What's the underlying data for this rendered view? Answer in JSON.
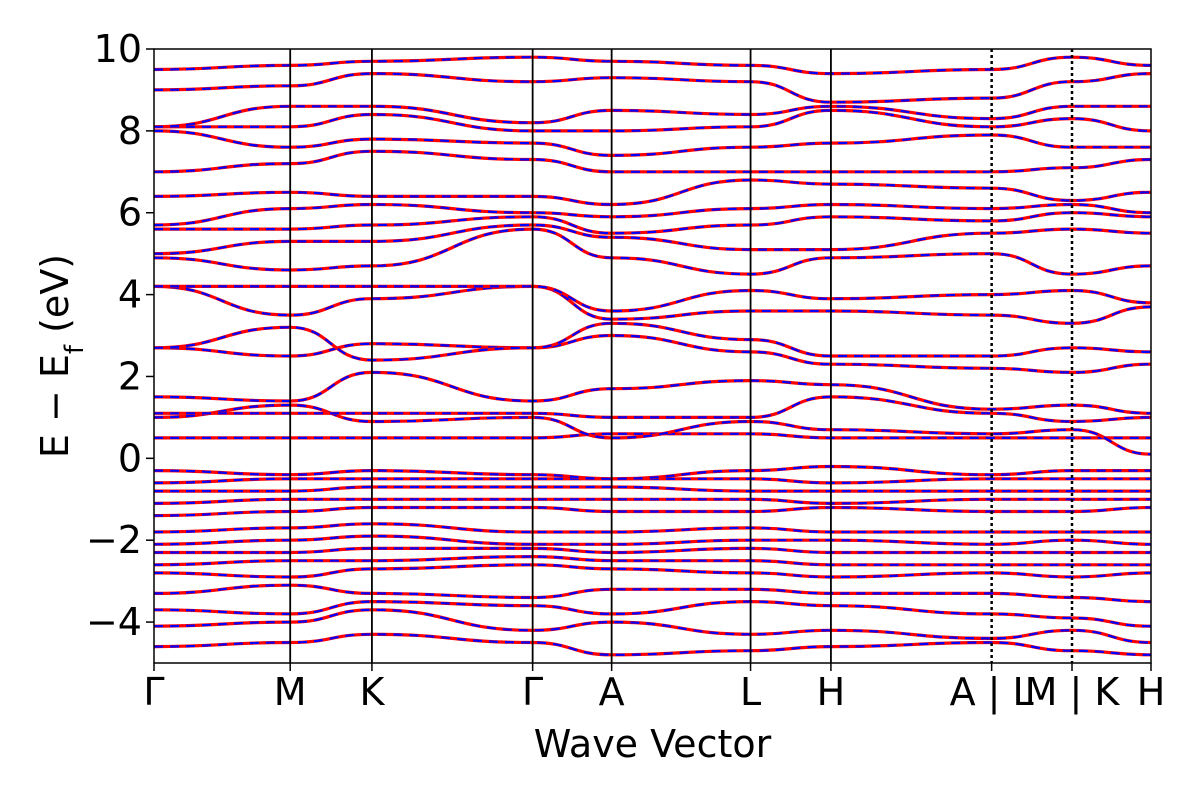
{
  "chart_data": {
    "type": "line",
    "title": "",
    "xlabel": "Wave Vector",
    "ylabel": "E − E_f (eV)",
    "ylabel_main": "E − E",
    "ylabel_sub": "f",
    "ylabel_tail": " (eV)",
    "ylim": [
      -5,
      10
    ],
    "yticks": [
      -4,
      -2,
      0,
      2,
      4,
      6,
      8,
      10
    ],
    "ytick_labels": [
      "−4",
      "−2",
      "0",
      "2",
      "4",
      "6",
      "8",
      "10"
    ],
    "x_path_labels": [
      "Γ",
      "M",
      "K",
      "Γ",
      "A",
      "L",
      "H",
      "A | L",
      "M | K",
      "H"
    ],
    "x_path_positions": [
      0,
      1.0,
      1.6,
      2.78,
      3.36,
      4.38,
      4.97,
      6.15,
      6.74,
      7.32
    ],
    "discontinuities": [
      6.15,
      6.74
    ],
    "grid": false,
    "series": [
      {
        "color": "#ff0000",
        "style": "solid"
      },
      {
        "color": "#0000ff",
        "style": "dashed"
      }
    ],
    "bands": [
      {
        "y": [
          -4.6,
          -4.5,
          -4.3,
          -4.5,
          -4.8,
          -4.7,
          -4.6,
          -4.5,
          -4.7,
          -4.8
        ]
      },
      {
        "y": [
          -4.1,
          -4.0,
          -3.7,
          -4.2,
          -4.0,
          -4.3,
          -4.2,
          -4.4,
          -4.2,
          -4.5
        ]
      },
      {
        "y": [
          -3.7,
          -3.8,
          -3.5,
          -3.6,
          -3.8,
          -3.5,
          -3.6,
          -3.8,
          -3.9,
          -4.1
        ]
      },
      {
        "y": [
          -3.3,
          -3.1,
          -3.3,
          -3.4,
          -3.2,
          -3.2,
          -3.3,
          -3.3,
          -3.4,
          -3.5
        ]
      },
      {
        "y": [
          -2.8,
          -2.9,
          -2.7,
          -2.6,
          -2.7,
          -2.8,
          -2.9,
          -2.8,
          -2.9,
          -2.8
        ]
      },
      {
        "y": [
          -2.6,
          -2.5,
          -2.5,
          -2.4,
          -2.5,
          -2.5,
          -2.6,
          -2.6,
          -2.6,
          -2.6
        ]
      },
      {
        "y": [
          -2.3,
          -2.3,
          -2.2,
          -2.2,
          -2.3,
          -2.2,
          -2.3,
          -2.3,
          -2.3,
          -2.3
        ]
      },
      {
        "y": [
          -2.1,
          -2.0,
          -1.9,
          -2.1,
          -2.1,
          -2.0,
          -2.0,
          -2.1,
          -2.0,
          -2.1
        ]
      },
      {
        "y": [
          -1.8,
          -1.7,
          -1.6,
          -1.8,
          -1.8,
          -1.7,
          -1.8,
          -1.8,
          -1.8,
          -1.8
        ]
      },
      {
        "y": [
          -1.4,
          -1.3,
          -1.2,
          -1.2,
          -1.3,
          -1.3,
          -1.2,
          -1.3,
          -1.3,
          -1.2
        ]
      },
      {
        "y": [
          -1.1,
          -1.0,
          -1.0,
          -1.0,
          -1.0,
          -1.0,
          -1.1,
          -1.0,
          -1.0,
          -1.0
        ]
      },
      {
        "y": [
          -0.8,
          -0.8,
          -0.7,
          -0.7,
          -0.7,
          -0.8,
          -0.8,
          -0.8,
          -0.8,
          -0.8
        ]
      },
      {
        "y": [
          -0.6,
          -0.5,
          -0.5,
          -0.5,
          -0.5,
          -0.5,
          -0.6,
          -0.5,
          -0.5,
          -0.5
        ]
      },
      {
        "y": [
          -0.3,
          -0.4,
          -0.3,
          -0.4,
          -0.5,
          -0.3,
          -0.2,
          -0.4,
          -0.3,
          -0.3
        ]
      },
      {
        "y": [
          0.5,
          0.5,
          0.5,
          0.5,
          0.6,
          0.6,
          0.5,
          0.5,
          0.5,
          0.5
        ]
      },
      {
        "y": [
          1.0,
          1.3,
          0.9,
          1.0,
          0.5,
          0.9,
          0.7,
          0.6,
          0.7,
          0.1
        ]
      },
      {
        "y": [
          1.1,
          1.1,
          1.1,
          1.1,
          1.0,
          1.0,
          1.5,
          1.1,
          0.9,
          1.0
        ]
      },
      {
        "y": [
          1.5,
          1.4,
          2.1,
          1.4,
          1.7,
          1.9,
          1.8,
          1.2,
          1.3,
          1.1
        ]
      },
      {
        "y": [
          2.7,
          2.5,
          2.8,
          2.7,
          3.0,
          2.6,
          2.3,
          2.2,
          2.1,
          2.3
        ]
      },
      {
        "y": [
          2.7,
          3.2,
          2.4,
          2.7,
          3.3,
          2.9,
          2.5,
          2.5,
          2.7,
          2.6
        ]
      },
      {
        "y": [
          4.2,
          3.5,
          3.9,
          4.2,
          3.4,
          3.6,
          3.6,
          3.5,
          3.3,
          3.7
        ]
      },
      {
        "y": [
          4.2,
          4.2,
          4.2,
          4.2,
          3.6,
          4.1,
          3.9,
          4.0,
          4.1,
          3.8
        ]
      },
      {
        "y": [
          4.9,
          4.6,
          4.7,
          5.6,
          4.9,
          4.5,
          4.9,
          5.0,
          4.5,
          4.7
        ]
      },
      {
        "y": [
          5.0,
          5.3,
          5.3,
          5.7,
          5.4,
          5.1,
          5.1,
          5.5,
          5.6,
          5.5
        ]
      },
      {
        "y": [
          5.6,
          5.6,
          5.7,
          5.9,
          5.5,
          5.7,
          5.9,
          5.8,
          6.0,
          5.9
        ]
      },
      {
        "y": [
          5.7,
          6.1,
          6.2,
          6.0,
          5.9,
          6.1,
          6.2,
          6.1,
          6.2,
          6.0
        ]
      },
      {
        "y": [
          6.4,
          6.5,
          6.4,
          6.4,
          6.2,
          6.8,
          6.7,
          6.6,
          6.3,
          6.5
        ]
      },
      {
        "y": [
          7.0,
          7.2,
          7.5,
          7.3,
          7.0,
          7.0,
          7.0,
          7.0,
          7.1,
          7.3
        ]
      },
      {
        "y": [
          8.0,
          7.6,
          7.8,
          7.7,
          7.4,
          7.6,
          7.7,
          7.9,
          7.6,
          7.6
        ]
      },
      {
        "y": [
          8.1,
          8.1,
          8.4,
          8.0,
          8.0,
          8.1,
          8.5,
          8.1,
          8.3,
          8.0
        ]
      },
      {
        "y": [
          8.1,
          8.6,
          8.6,
          8.2,
          8.5,
          8.4,
          8.6,
          8.3,
          8.6,
          8.6
        ]
      },
      {
        "y": [
          9.0,
          9.1,
          9.4,
          9.2,
          9.3,
          9.2,
          8.7,
          8.8,
          9.2,
          9.4
        ]
      },
      {
        "y": [
          9.5,
          9.6,
          9.7,
          9.8,
          9.7,
          9.6,
          9.4,
          9.5,
          9.8,
          9.6
        ]
      }
    ]
  }
}
